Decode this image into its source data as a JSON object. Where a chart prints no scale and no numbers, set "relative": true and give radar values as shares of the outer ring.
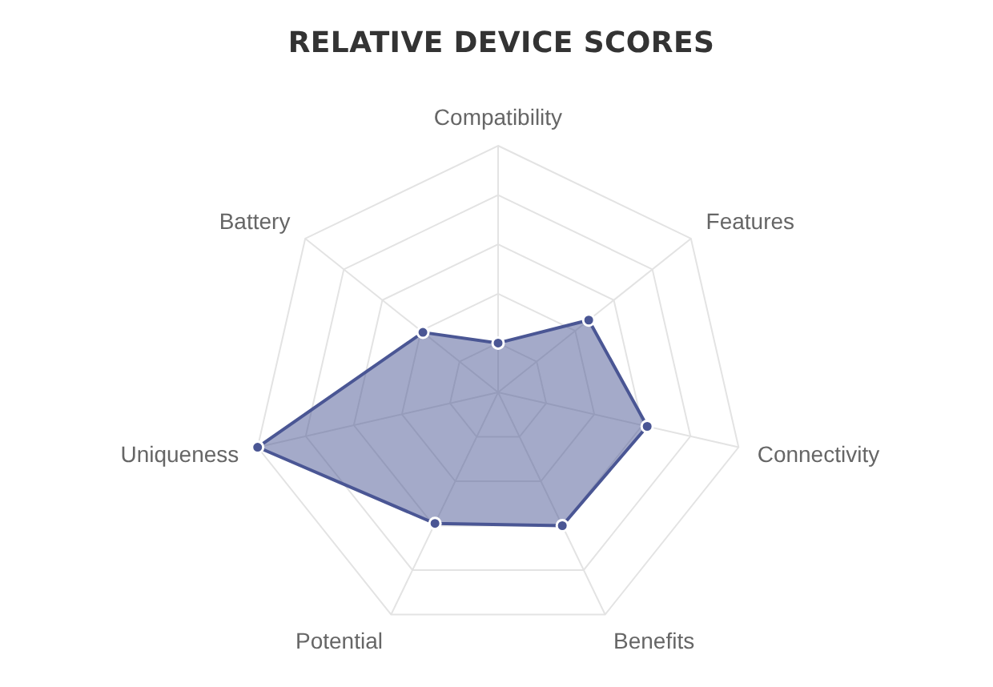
{
  "chart_data": {
    "type": "radar",
    "title": "RELATIVE DEVICE SCORES",
    "categories": [
      "Compatibility",
      "Features",
      "Connectivity",
      "Benefits",
      "Potential",
      "Uniqueness",
      "Battery"
    ],
    "relative": true,
    "series": [
      {
        "color": "#4a5694",
        "values": [
          0.2,
          0.47,
          0.62,
          0.6,
          0.59,
          1,
          0.39
        ]
      }
    ],
    "marker": "circle",
    "grid": true
  }
}
